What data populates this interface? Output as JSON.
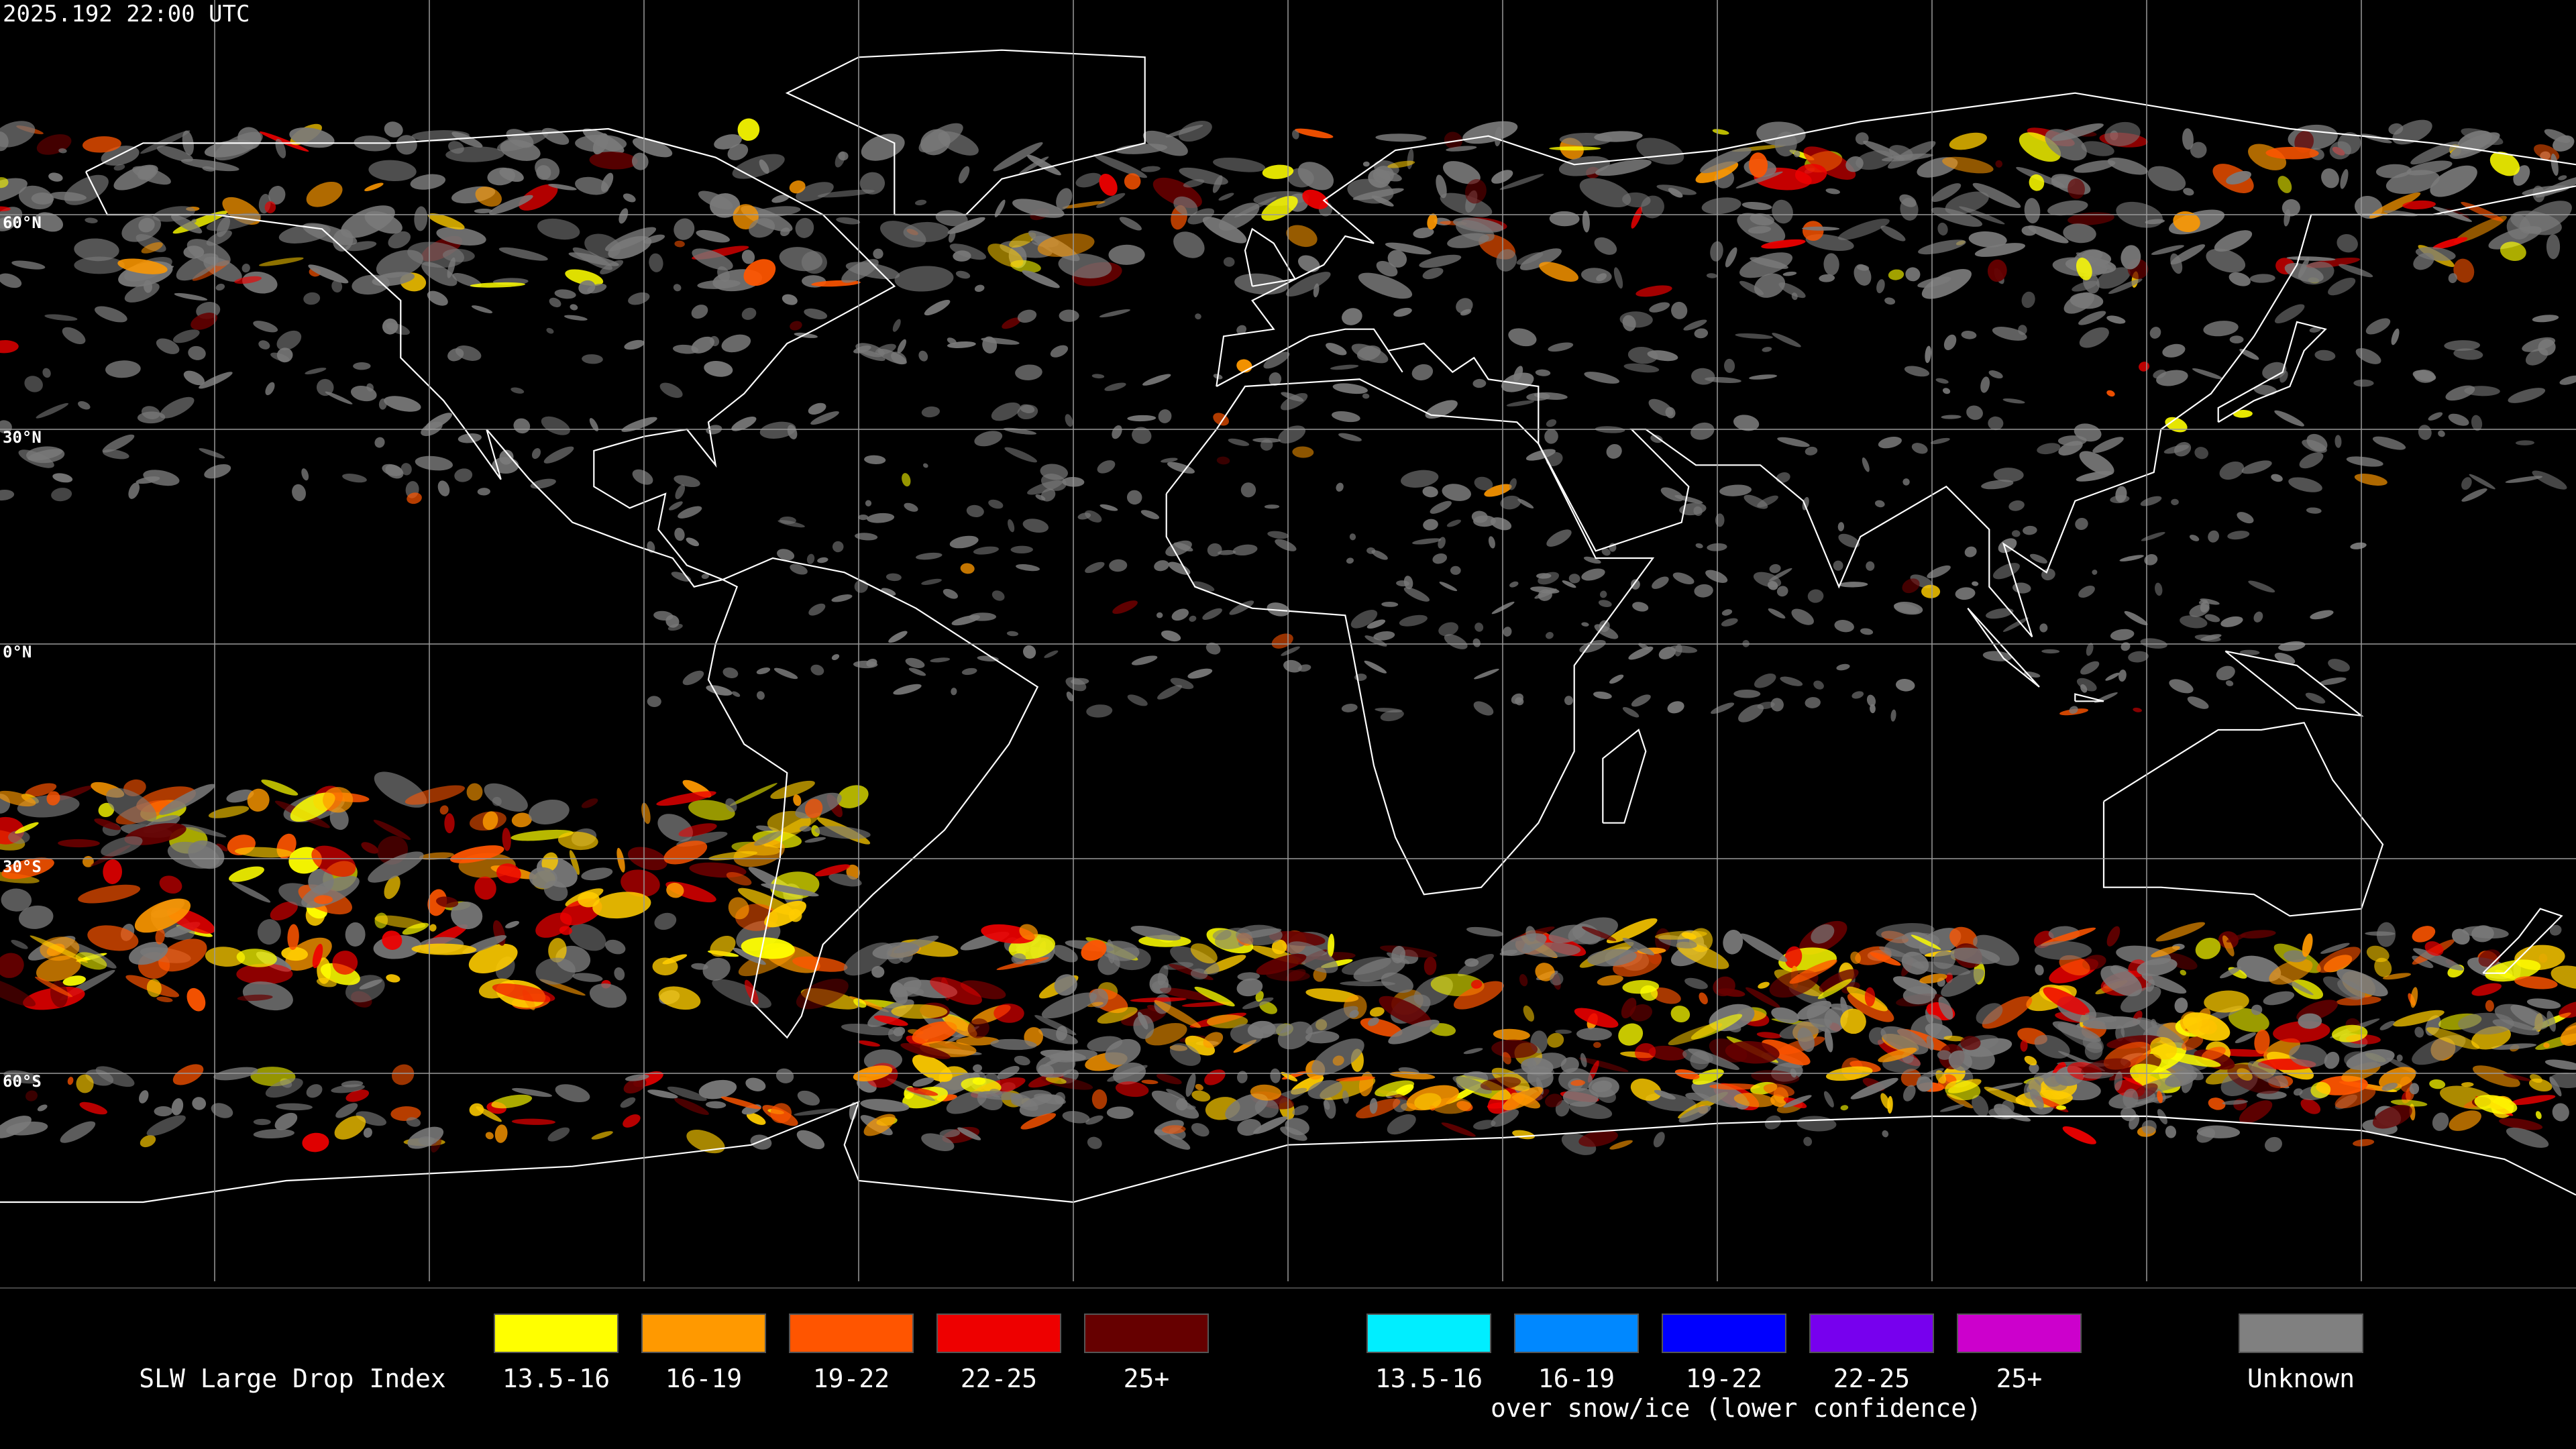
{
  "header": {
    "timestamp": "2025.192 22:00 UTC"
  },
  "map": {
    "latitude_labels": [
      "60°N",
      "30°N",
      "0°N",
      "30°S",
      "60°S"
    ]
  },
  "legend": {
    "title": "SLW Large Drop Index",
    "liquid": [
      {
        "label": "13.5-16",
        "color": "#ffff00"
      },
      {
        "label": "16-19",
        "color": "#ff9900"
      },
      {
        "label": "19-22",
        "color": "#ff5500"
      },
      {
        "label": "22-25",
        "color": "#ee0000"
      },
      {
        "label": "25+",
        "color": "#660000"
      }
    ],
    "snow_ice": {
      "items": [
        {
          "label": "13.5-16",
          "color": "#00eeff"
        },
        {
          "label": "16-19",
          "color": "#0088ff"
        },
        {
          "label": "19-22",
          "color": "#0000ff"
        },
        {
          "label": "22-25",
          "color": "#7700ee"
        },
        {
          "label": "25+",
          "color": "#cc00cc"
        }
      ],
      "caption": "over snow/ice (lower confidence)"
    },
    "unknown": {
      "label": "Unknown",
      "color": "#808080"
    }
  }
}
